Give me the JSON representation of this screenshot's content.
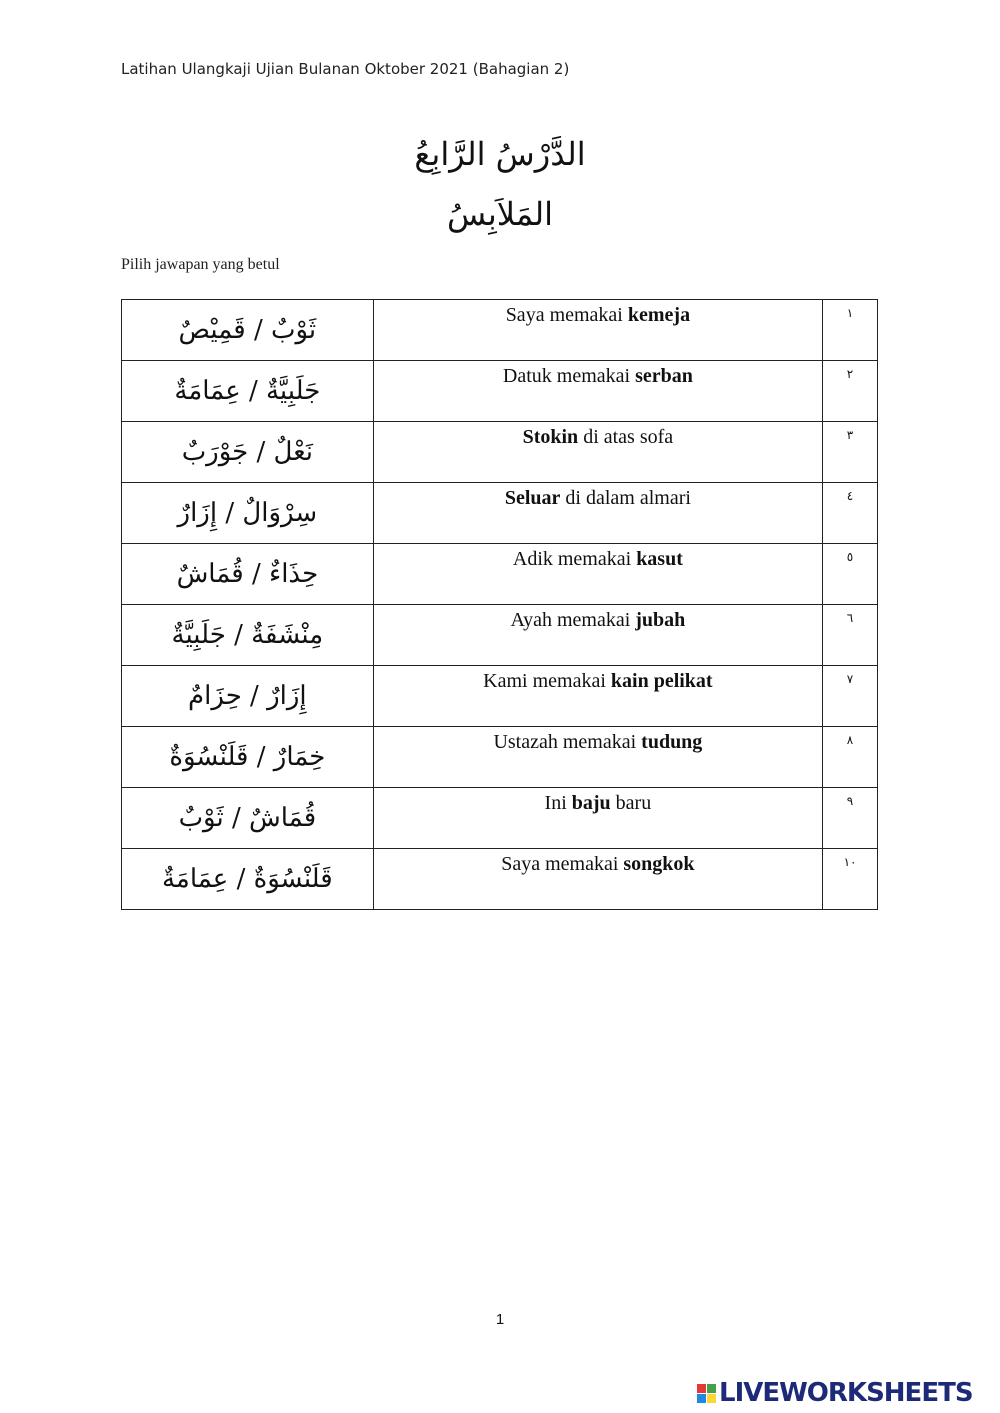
{
  "header": "Latihan Ulangkaji Ujian Bulanan Oktober 2021 (Bahagian 2)",
  "title_line1": "الدَّرْسُ الرَّابِعُ",
  "title_line2": "المَلاَبِسُ",
  "instruction": "Pilih jawapan yang betul",
  "rows": [
    {
      "num": "١",
      "options": "ثَوْبٌ / قَمِيْصٌ",
      "pre": "Saya memakai ",
      "bold": "kemeja",
      "post": ""
    },
    {
      "num": "٢",
      "options": "جَلَبِيَّةٌ / عِمَامَةٌ",
      "pre": "Datuk memakai ",
      "bold": "serban",
      "post": ""
    },
    {
      "num": "٣",
      "options": "نَعْلٌ / جَوْرَبٌ",
      "pre": "",
      "bold": "Stokin",
      "post": " di atas sofa"
    },
    {
      "num": "٤",
      "options": "سِرْوَالٌ / إِزَارٌ",
      "pre": "",
      "bold": "Seluar",
      "post": " di dalam almari"
    },
    {
      "num": "٥",
      "options": "حِذَاءٌ / قُمَاشٌ",
      "pre": "Adik memakai ",
      "bold": "kasut",
      "post": ""
    },
    {
      "num": "٦",
      "options": "مِنْشَفَةٌ / جَلَبِيَّةٌ",
      "pre": "Ayah memakai ",
      "bold": "jubah",
      "post": ""
    },
    {
      "num": "٧",
      "options": "إِزَارٌ / حِزَامٌ",
      "pre": "Kami memakai ",
      "bold": "kain pelikat",
      "post": ""
    },
    {
      "num": "٨",
      "options": "خِمَارٌ / قَلَنْسُوَةٌ",
      "pre": "Ustazah memakai ",
      "bold": "tudung",
      "post": ""
    },
    {
      "num": "٩",
      "options": "قُمَاشٌ / ثَوْبٌ",
      "pre": "Ini ",
      "bold": "baju",
      "post": " baru"
    },
    {
      "num": "١٠",
      "options": "قَلَنْسُوَةٌ / عِمَامَةٌ",
      "pre": "Saya memakai ",
      "bold": "songkok",
      "post": ""
    }
  ],
  "page_number": "1",
  "logo": "LIVEWORKSHEETS"
}
